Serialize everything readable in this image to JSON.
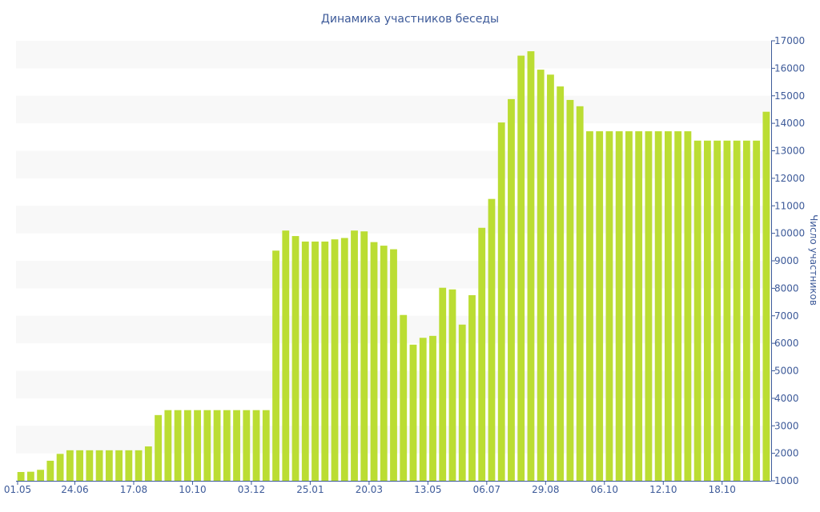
{
  "chart_data": {
    "type": "bar",
    "title": "Динамика участников беседы",
    "xlabel": "",
    "ylabel": "Число участников",
    "ylim": [
      1000,
      17000
    ],
    "yticks": [
      1000,
      2000,
      3000,
      4000,
      5000,
      6000,
      7000,
      8000,
      9000,
      10000,
      11000,
      12000,
      13000,
      14000,
      15000,
      16000,
      17000
    ],
    "x_tick_labels": [
      {
        "index": 0,
        "label": "01.05"
      },
      {
        "index": 6,
        "label": "24.06"
      },
      {
        "index": 12,
        "label": "17.08"
      },
      {
        "index": 18,
        "label": "10.10"
      },
      {
        "index": 24,
        "label": "03.12"
      },
      {
        "index": 30,
        "label": "25.01"
      },
      {
        "index": 36,
        "label": "20.03"
      },
      {
        "index": 42,
        "label": "13.05"
      },
      {
        "index": 48,
        "label": "06.07"
      },
      {
        "index": 54,
        "label": "29.08"
      },
      {
        "index": 60,
        "label": "06.10"
      },
      {
        "index": 66,
        "label": "12.10"
      },
      {
        "index": 72,
        "label": "18.10"
      }
    ],
    "values": [
      1320,
      1330,
      1400,
      1730,
      1980,
      2110,
      2110,
      2110,
      2110,
      2110,
      2110,
      2110,
      2110,
      2250,
      3390,
      3570,
      3570,
      3570,
      3570,
      3570,
      3570,
      3570,
      3570,
      3570,
      3570,
      3570,
      9370,
      10100,
      9900,
      9700,
      9700,
      9700,
      9780,
      9830,
      10100,
      10070,
      9680,
      9550,
      9420,
      7030,
      5950,
      6200,
      6270,
      8020,
      7960,
      6680,
      7750,
      10200,
      11250,
      14030,
      14880,
      16460,
      16620,
      15950,
      15770,
      15340,
      14850,
      14620,
      13710,
      13710,
      13710,
      13710,
      13710,
      13710,
      13710,
      13710,
      13710,
      13710,
      13710,
      13370,
      13370,
      13370,
      13370,
      13370,
      13370,
      13370,
      14420
    ],
    "grid": "alternating-bands",
    "legend": "none",
    "colors": {
      "bar": "#bbdd33",
      "band": "#f8f8f8",
      "text": "#3d5a99",
      "axis": "#3d5a99"
    }
  }
}
